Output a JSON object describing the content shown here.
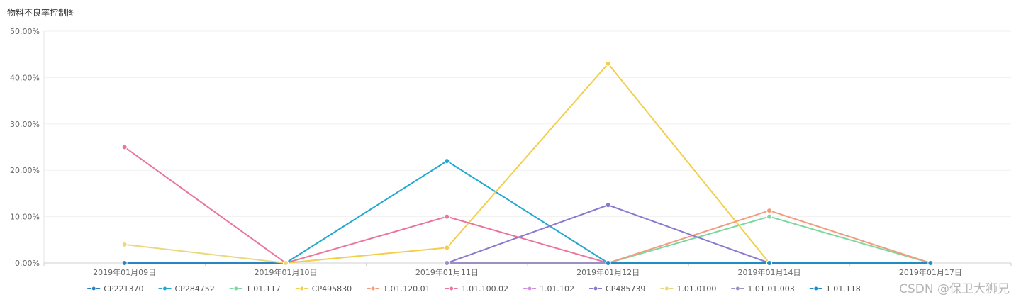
{
  "chart_data": {
    "type": "line",
    "title": "物料不良率控制图",
    "xlabel": "",
    "ylabel": "",
    "categories": [
      "2019年01月09日",
      "2019年01月10日",
      "2019年01月11日",
      "2019年01月12日",
      "2019年01月14日",
      "2019年01月17日"
    ],
    "ylim": [
      0,
      50
    ],
    "y_ticks": [
      0,
      10,
      20,
      30,
      40,
      50
    ],
    "y_tick_labels": [
      "0.00%",
      "10.00%",
      "20.00%",
      "30.00%",
      "40.00%",
      "50.00%"
    ],
    "grid": true,
    "legend_position": "bottom",
    "series": [
      {
        "name": "CP221370",
        "color": "#2b84c2",
        "values": [
          0,
          0,
          null,
          null,
          null,
          null
        ]
      },
      {
        "name": "CP284752",
        "color": "#22a7d0",
        "values": [
          null,
          0,
          22,
          0,
          null,
          null
        ]
      },
      {
        "name": "1.01.117",
        "color": "#7cd7a0",
        "values": [
          null,
          null,
          null,
          0,
          10,
          0
        ]
      },
      {
        "name": "CP495830",
        "color": "#f2cf4a",
        "values": [
          null,
          0,
          3.3,
          43,
          0,
          null
        ]
      },
      {
        "name": "1.01.120.01",
        "color": "#f29c7e",
        "values": [
          null,
          null,
          null,
          0,
          11.3,
          0
        ]
      },
      {
        "name": "1.01.100.02",
        "color": "#eb7499",
        "values": [
          25,
          0,
          10,
          0,
          null,
          null
        ]
      },
      {
        "name": "1.01.102",
        "color": "#d48ee6",
        "values": [
          null,
          null,
          null,
          null,
          null,
          null
        ]
      },
      {
        "name": "CP485739",
        "color": "#8b79d1",
        "values": [
          null,
          null,
          0,
          12.5,
          0,
          null
        ]
      },
      {
        "name": "1.01.0100",
        "color": "#ead87e",
        "values": [
          4,
          0,
          null,
          null,
          null,
          null
        ]
      },
      {
        "name": "1.01.01.003",
        "color": "#9c8fc4",
        "values": [
          null,
          null,
          0,
          0,
          null,
          null
        ]
      },
      {
        "name": "1.01.118",
        "color": "#1f8dc4",
        "values": [
          null,
          null,
          null,
          0,
          0,
          0
        ]
      }
    ]
  },
  "watermark": "CSDN @保卫大狮兄"
}
